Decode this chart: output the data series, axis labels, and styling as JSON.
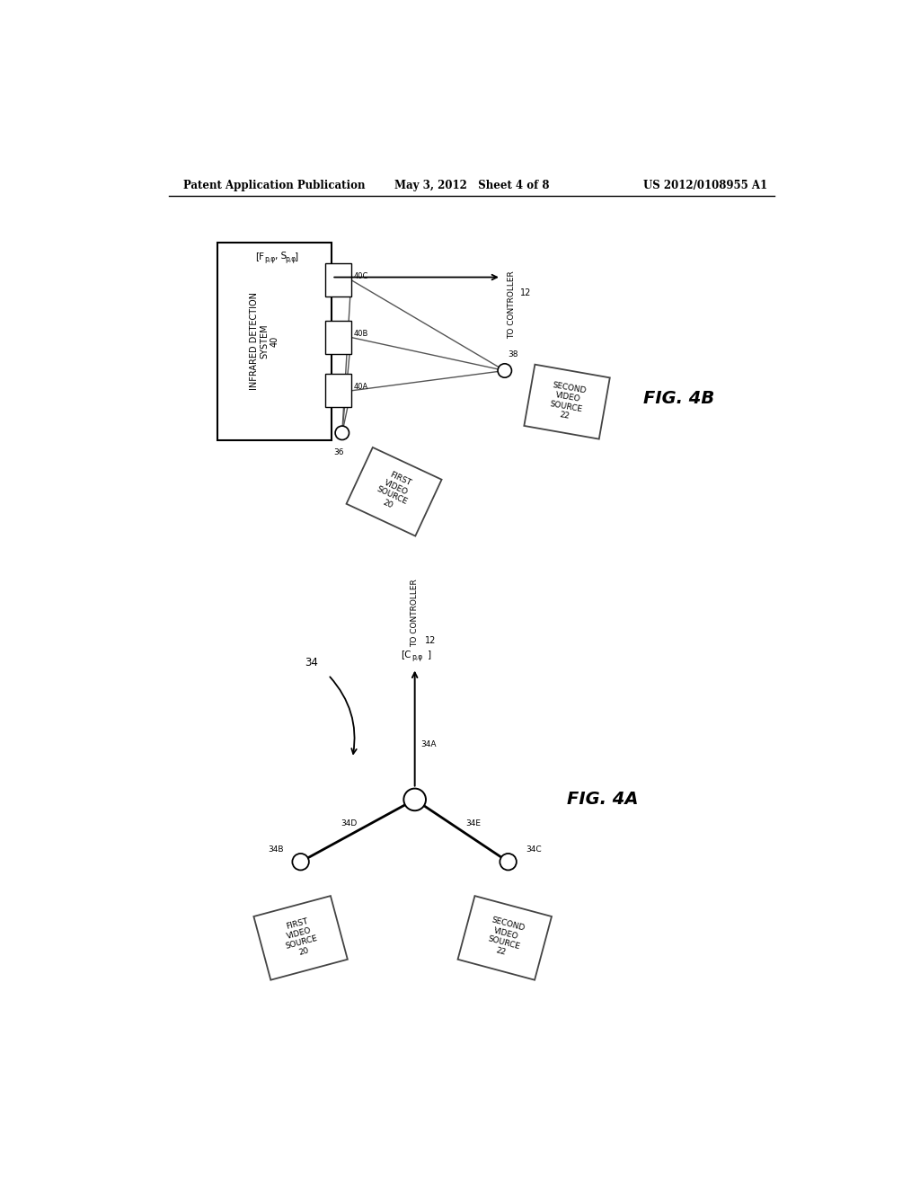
{
  "header_left": "Patent Application Publication",
  "header_center": "May 3, 2012   Sheet 4 of 8",
  "header_right": "US 2012/0108955 A1",
  "bg_color": "#ffffff",
  "line_color": "#000000",
  "fig4b_label": "FIG. 4B",
  "fig4a_label": "FIG. 4A",
  "ids_title": "INFRARED DETECTION\nSYSTEM\n40",
  "label_40a": "40A",
  "label_40b": "40B",
  "label_40c": "40C",
  "label_36": "36",
  "label_38": "38",
  "label_12_top": "12",
  "label_to_controller_top": "TO CONTROLLER",
  "label_fp": "[F",
  "label_fp2": "p,φ",
  "label_fp3": ", S",
  "label_fp4": "p,φ",
  "label_fp5": "]",
  "label_first_video_top": "FIRST\nVIDEO\nSOURCE\n20",
  "label_second_video_top": "SECOND\nVIDEO\nSOURCE\n22",
  "label_34": "34",
  "label_34a": "34A",
  "label_34b": "34B",
  "label_34c": "34C",
  "label_34d": "34D",
  "label_34e": "34E",
  "label_12_bot": "12",
  "label_to_controller_bot": "TO CONTROLLER",
  "label_cp": "[C",
  "label_cp2": "p,φ",
  "label_cp3": "]",
  "label_first_video_bot": "FIRST\nVIDEO\nSOURCE\n20",
  "label_second_video_bot": "SECOND\nVIDEO\nSOURCE\n22"
}
